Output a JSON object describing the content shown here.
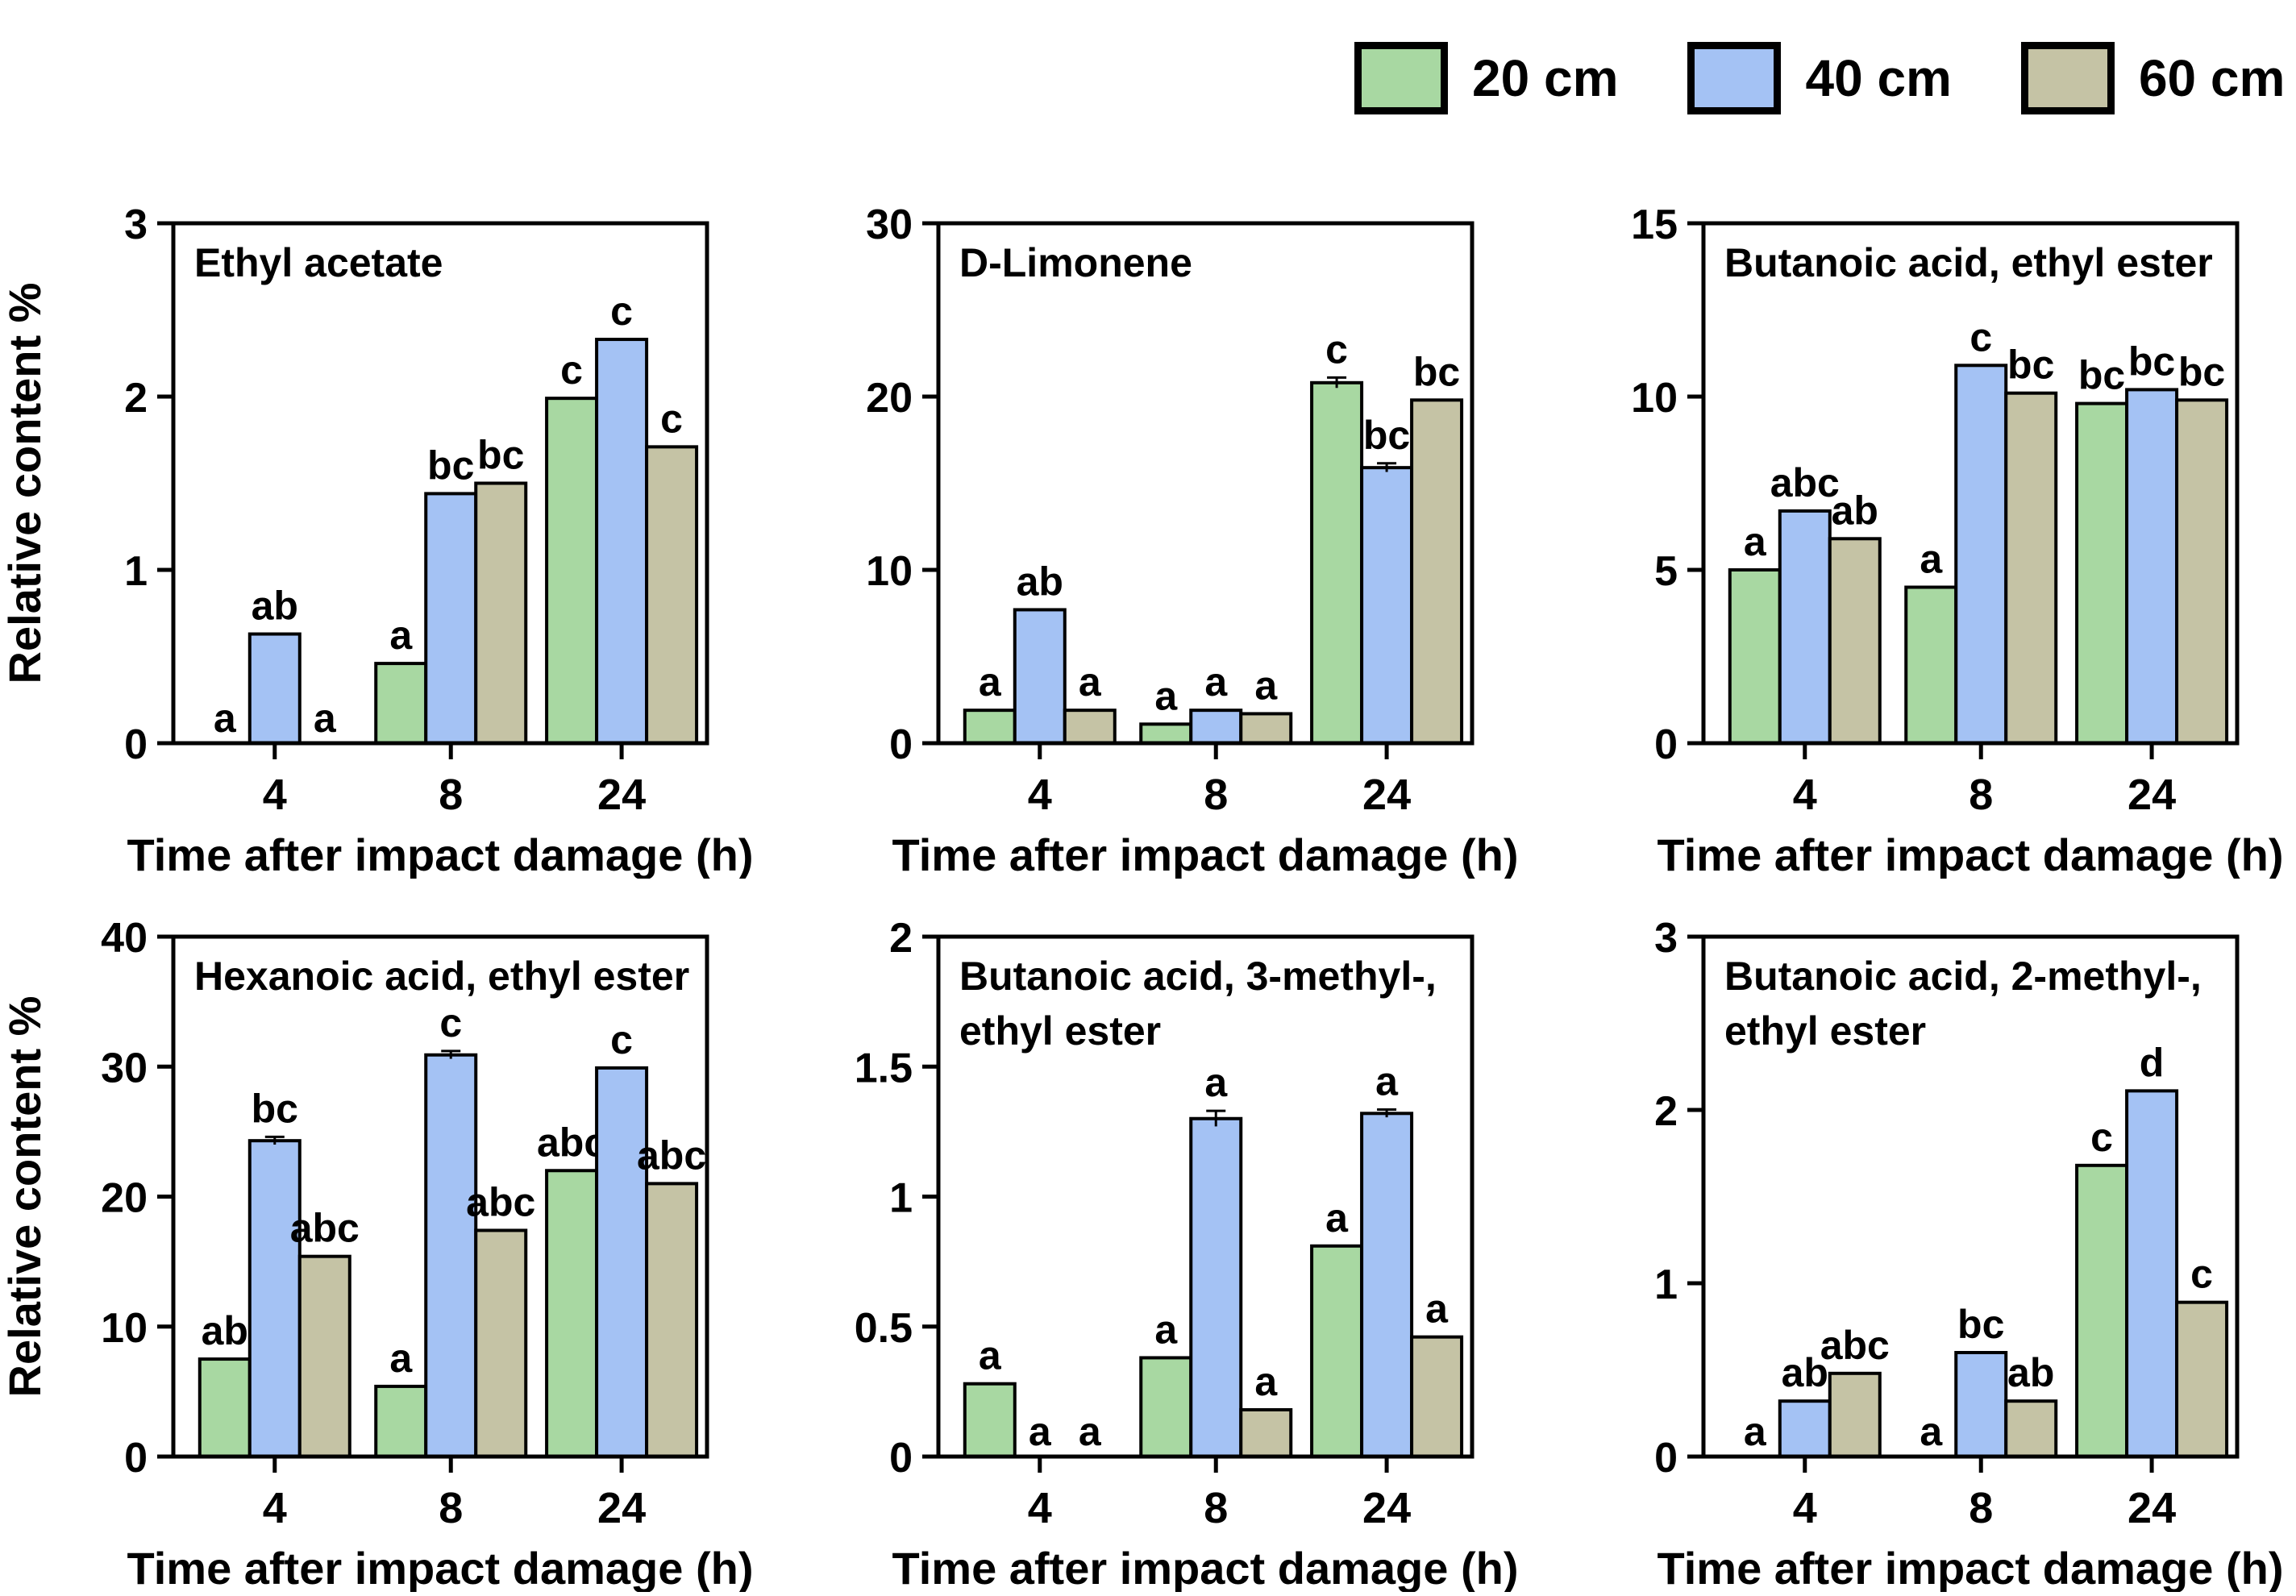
{
  "figure": {
    "x_axis_label": "Time after impact damage (h)",
    "y_axis_label": "Relative content %"
  },
  "legend": {
    "items": [
      {
        "label": "20 cm",
        "color": "#a8d8a2"
      },
      {
        "label": "40 cm",
        "color": "#a4c2f4"
      },
      {
        "label": "60 cm",
        "color": "#c5c3a5"
      }
    ]
  },
  "chart_data": [
    {
      "type": "bar",
      "id": "ethyl-acetate",
      "title_lines": [
        "Ethyl acetate"
      ],
      "title": "Ethyl acetate",
      "xlabel": "Time after impact damage (h)",
      "ylabel": "Relative content %",
      "ylim": [
        0,
        3
      ],
      "yticks": [
        0,
        1,
        2,
        3
      ],
      "categories": [
        "4",
        "8",
        "24"
      ],
      "series": [
        {
          "name": "20 cm",
          "values": [
            0,
            0.46,
            1.99
          ],
          "letters": [
            "a",
            "a",
            "c"
          ],
          "errors": [
            0,
            0,
            0
          ]
        },
        {
          "name": "40 cm",
          "values": [
            0.63,
            1.44,
            2.33
          ],
          "letters": [
            "ab",
            "bc",
            "c"
          ],
          "errors": [
            0,
            0,
            0
          ]
        },
        {
          "name": "60 cm",
          "values": [
            0,
            1.5,
            1.71
          ],
          "letters": [
            "a",
            "bc",
            "c"
          ],
          "errors": [
            0,
            0,
            0
          ]
        }
      ]
    },
    {
      "type": "bar",
      "id": "d-limonene",
      "title_lines": [
        "D-Limonene"
      ],
      "title": "D-Limonene",
      "xlabel": "Time after impact damage (h)",
      "ylabel": "",
      "ylim": [
        0,
        30
      ],
      "yticks": [
        0,
        10,
        20,
        30
      ],
      "categories": [
        "4",
        "8",
        "24"
      ],
      "series": [
        {
          "name": "20 cm",
          "values": [
            1.9,
            1.1,
            20.8
          ],
          "letters": [
            "a",
            "a",
            "c"
          ],
          "errors": [
            0,
            0,
            0.3
          ]
        },
        {
          "name": "40 cm",
          "values": [
            7.7,
            1.9,
            15.9
          ],
          "letters": [
            "ab",
            "a",
            "bc"
          ],
          "errors": [
            0,
            0,
            0.25
          ]
        },
        {
          "name": "60 cm",
          "values": [
            1.9,
            1.7,
            19.8
          ],
          "letters": [
            "a",
            "a",
            "bc"
          ],
          "errors": [
            0,
            0,
            0
          ]
        }
      ]
    },
    {
      "type": "bar",
      "id": "butanoic-acid-ethyl-ester",
      "title_lines": [
        "Butanoic acid, ethyl ester"
      ],
      "title": "Butanoic acid, ethyl ester",
      "xlabel": "Time after impact damage (h)",
      "ylabel": "",
      "ylim": [
        0,
        15
      ],
      "yticks": [
        0,
        5,
        10,
        15
      ],
      "categories": [
        "4",
        "8",
        "24"
      ],
      "series": [
        {
          "name": "20 cm",
          "values": [
            5.0,
            4.5,
            9.8
          ],
          "letters": [
            "a",
            "a",
            "bc"
          ],
          "errors": [
            0,
            0,
            0
          ]
        },
        {
          "name": "40 cm",
          "values": [
            6.7,
            10.9,
            10.2
          ],
          "letters": [
            "abc",
            "c",
            "bc"
          ],
          "errors": [
            0,
            0,
            0
          ]
        },
        {
          "name": "60 cm",
          "values": [
            5.9,
            10.1,
            9.9
          ],
          "letters": [
            "ab",
            "bc",
            "bc"
          ],
          "errors": [
            0,
            0,
            0
          ]
        }
      ]
    },
    {
      "type": "bar",
      "id": "hexanoic-acid-ethyl-ester",
      "title_lines": [
        "Hexanoic acid, ethyl ester"
      ],
      "title": "Hexanoic acid, ethyl ester",
      "xlabel": "Time after impact damage (h)",
      "ylabel": "Relative content %",
      "ylim": [
        0,
        40
      ],
      "yticks": [
        0,
        10,
        20,
        30,
        40
      ],
      "categories": [
        "4",
        "8",
        "24"
      ],
      "series": [
        {
          "name": "20 cm",
          "values": [
            7.5,
            5.4,
            22.0
          ],
          "letters": [
            "ab",
            "a",
            "abc"
          ],
          "errors": [
            0,
            0,
            0
          ]
        },
        {
          "name": "40 cm",
          "values": [
            24.3,
            30.9,
            29.9
          ],
          "letters": [
            "bc",
            "c",
            "c"
          ],
          "errors": [
            0.3,
            0.3,
            0
          ]
        },
        {
          "name": "60 cm",
          "values": [
            15.4,
            17.4,
            21.0
          ],
          "letters": [
            "abc",
            "abc",
            "abc"
          ],
          "errors": [
            0,
            0,
            0
          ]
        }
      ]
    },
    {
      "type": "bar",
      "id": "butanoic-acid-3-methyl-ethyl-ester",
      "title_lines": [
        "Butanoic acid, 3-methyl-,",
        "ethyl ester"
      ],
      "title": "Butanoic acid, 3-methyl-, ethyl ester",
      "xlabel": "Time after impact damage (h)",
      "ylabel": "",
      "ylim": [
        0,
        2
      ],
      "yticks": [
        0,
        0.5,
        1,
        1.5,
        2
      ],
      "categories": [
        "4",
        "8",
        "24"
      ],
      "series": [
        {
          "name": "20 cm",
          "values": [
            0.28,
            0.38,
            0.81
          ],
          "letters": [
            "a",
            "a",
            "a"
          ],
          "errors": [
            0,
            0,
            0
          ]
        },
        {
          "name": "40 cm",
          "values": [
            0,
            1.3,
            1.32
          ],
          "letters": [
            "a",
            "a",
            "a"
          ],
          "errors": [
            0,
            0.03,
            0.015
          ]
        },
        {
          "name": "60 cm",
          "values": [
            0,
            0.18,
            0.46
          ],
          "letters": [
            "a",
            "a",
            "a"
          ],
          "errors": [
            0,
            0,
            0
          ]
        }
      ]
    },
    {
      "type": "bar",
      "id": "butanoic-acid-2-methyl-ethyl-ester",
      "title_lines": [
        "Butanoic acid, 2-methyl-,",
        "ethyl ester"
      ],
      "title": "Butanoic acid, 2-methyl-, ethyl ester",
      "xlabel": "Time after impact damage (h)",
      "ylabel": "",
      "ylim": [
        0,
        3
      ],
      "yticks": [
        0,
        1,
        2,
        3
      ],
      "categories": [
        "4",
        "8",
        "24"
      ],
      "series": [
        {
          "name": "20 cm",
          "values": [
            0,
            0,
            1.68
          ],
          "letters": [
            "a",
            "a",
            "c"
          ],
          "errors": [
            0,
            0,
            0
          ]
        },
        {
          "name": "40 cm",
          "values": [
            0.32,
            0.6,
            2.11
          ],
          "letters": [
            "ab",
            "bc",
            "d"
          ],
          "errors": [
            0,
            0,
            0
          ]
        },
        {
          "name": "60 cm",
          "values": [
            0.48,
            0.32,
            0.89
          ],
          "letters": [
            "abc",
            "ab",
            "c"
          ],
          "errors": [
            0,
            0,
            0
          ]
        }
      ]
    }
  ]
}
